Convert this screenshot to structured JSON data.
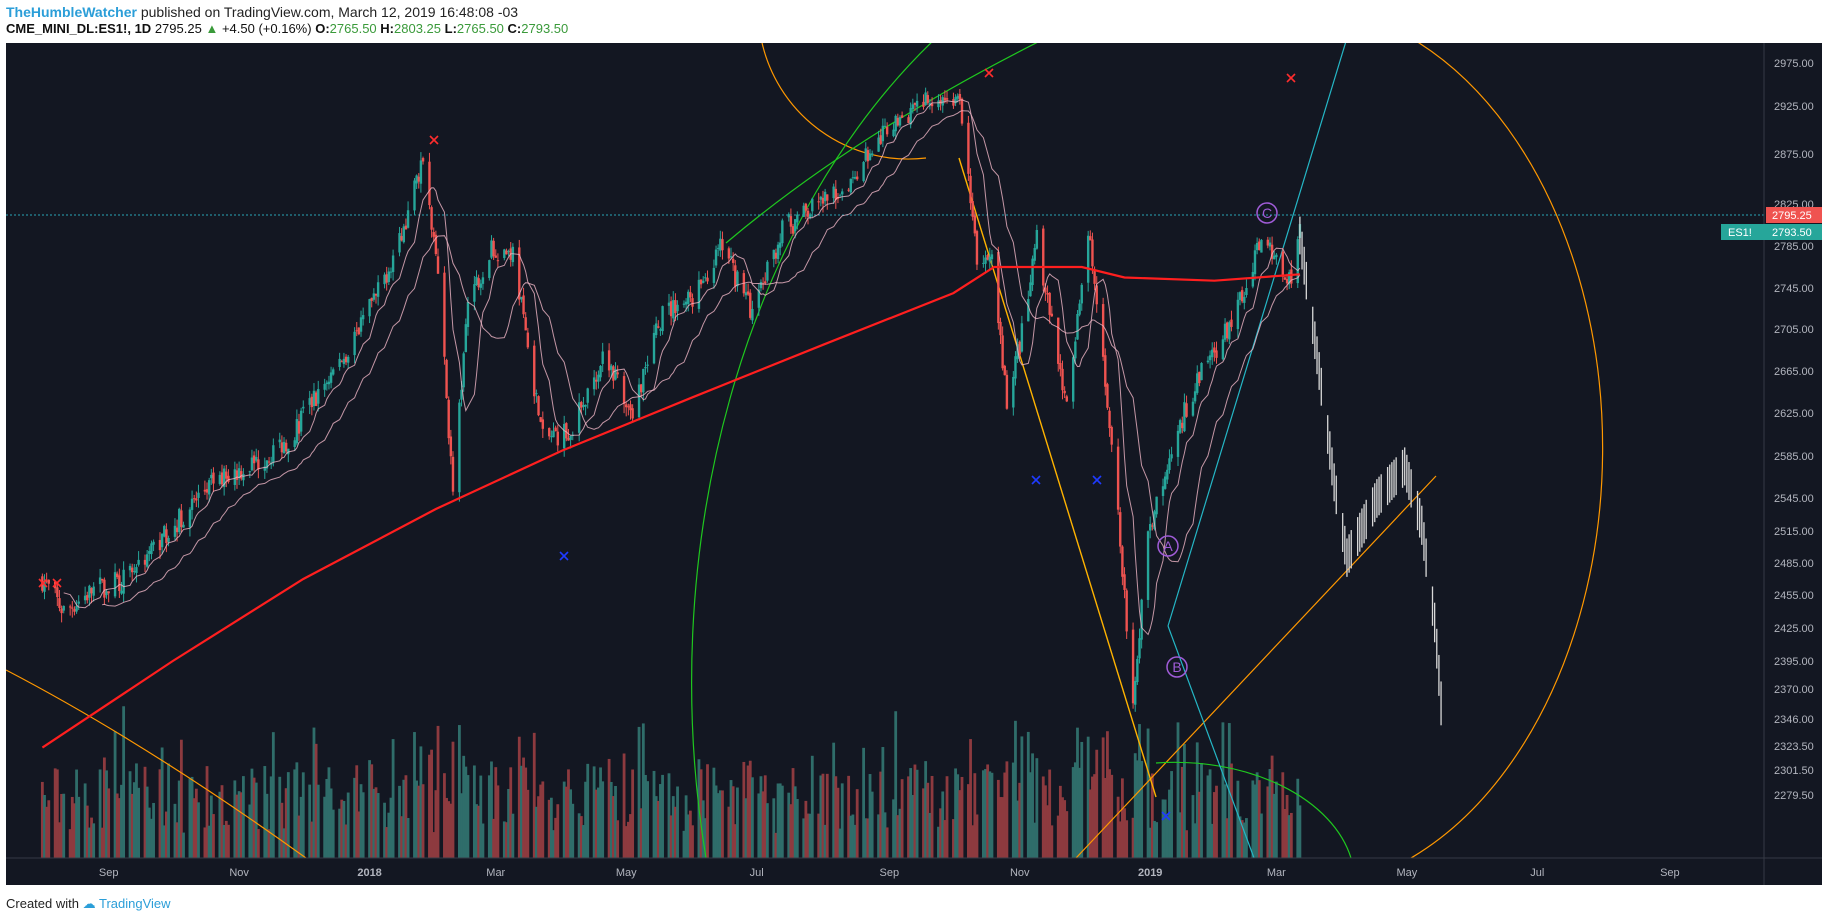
{
  "header": {
    "author": "TheHumbleWatcher",
    "published_text": "published on TradingView.com, March 12, 2019 16:48:08 -03"
  },
  "symbol_bar": {
    "symbol": "CME_MINI_DL:ES1!, 1D",
    "last": "2795.25",
    "change": "+4.50 (+0.16%)",
    "o_label": "O:",
    "o": "2765.50",
    "h_label": "H:",
    "h": "2803.25",
    "l_label": "L:",
    "l": "2765.50",
    "c_label": "C:",
    "c": "2793.50"
  },
  "footer": {
    "created_with": "Created with",
    "brand": "TradingView"
  },
  "colors": {
    "background": "#131722",
    "up": "#26a69a",
    "down": "#ef5350",
    "ma": "#ff1f1f",
    "fib_green": "#1fc81f",
    "fib_orange": "#ff9800",
    "trend_cyan": "#25b7c6",
    "gann_yellow": "#ffb300",
    "wave_purple": "#a05cd8",
    "price_badge": "#26a69a",
    "last_badge": "#ef5350"
  },
  "chart_data": {
    "type": "candlestick",
    "title": "",
    "x_tick_labels": [
      "Sep",
      "Nov",
      "2018",
      "Mar",
      "May",
      "Jul",
      "Sep",
      "Nov",
      "2019",
      "Mar",
      "May",
      "Jul",
      "Sep"
    ],
    "y_tick_labels": [
      "2975.00",
      "2925.00",
      "2875.00",
      "2825.00",
      "2785.00",
      "2745.00",
      "2705.00",
      "2665.00",
      "2625.00",
      "2585.00",
      "2545.00",
      "2515.00",
      "2485.00",
      "2455.00",
      "2425.00",
      "2395.00",
      "2370.00",
      "2346.00",
      "2323.50",
      "2301.50",
      "2279.50"
    ],
    "y_ticks": [
      2975,
      2925,
      2875,
      2825,
      2785,
      2745,
      2705,
      2665,
      2625,
      2585,
      2545,
      2515,
      2485,
      2455,
      2425,
      2395,
      2370,
      2346,
      2323.5,
      2301.5,
      2279.5
    ],
    "ylim": [
      2279.5,
      2990
    ],
    "last_price_label": "2795.25",
    "symbol_badge": "ES1!",
    "symbol_badge_price": "2793.50",
    "wave_labels": [
      "A",
      "B",
      "C"
    ],
    "price_path": [
      [
        "2017-08-01",
        2470
      ],
      [
        "2017-08-11",
        2440
      ],
      [
        "2017-08-25",
        2460
      ],
      [
        "2017-09-08",
        2470
      ],
      [
        "2017-09-29",
        2515
      ],
      [
        "2017-10-20",
        2560
      ],
      [
        "2017-11-10",
        2580
      ],
      [
        "2017-11-24",
        2600
      ],
      [
        "2017-12-08",
        2645
      ],
      [
        "2017-12-22",
        2685
      ],
      [
        "2018-01-05",
        2740
      ],
      [
        "2018-01-19",
        2810
      ],
      [
        "2018-01-26",
        2875
      ],
      [
        "2018-02-02",
        2760
      ],
      [
        "2018-02-09",
        2550
      ],
      [
        "2018-02-16",
        2730
      ],
      [
        "2018-02-26",
        2780
      ],
      [
        "2018-03-09",
        2780
      ],
      [
        "2018-03-23",
        2600
      ],
      [
        "2018-04-06",
        2610
      ],
      [
        "2018-04-20",
        2680
      ],
      [
        "2018-05-04",
        2630
      ],
      [
        "2018-05-18",
        2720
      ],
      [
        "2018-06-01",
        2735
      ],
      [
        "2018-06-15",
        2785
      ],
      [
        "2018-06-29",
        2720
      ],
      [
        "2018-07-13",
        2800
      ],
      [
        "2018-07-27",
        2820
      ],
      [
        "2018-08-10",
        2840
      ],
      [
        "2018-08-31",
        2900
      ],
      [
        "2018-09-21",
        2935
      ],
      [
        "2018-10-04",
        2930
      ],
      [
        "2018-10-12",
        2770
      ],
      [
        "2018-10-19",
        2770
      ],
      [
        "2018-10-26",
        2640
      ],
      [
        "2018-11-02",
        2700
      ],
      [
        "2018-11-09",
        2790
      ],
      [
        "2018-11-23",
        2630
      ],
      [
        "2018-12-03",
        2800
      ],
      [
        "2018-12-14",
        2600
      ],
      [
        "2018-12-24",
        2350
      ],
      [
        "2018-12-31",
        2510
      ],
      [
        "2019-01-11",
        2595
      ],
      [
        "2019-01-25",
        2665
      ],
      [
        "2019-02-08",
        2710
      ],
      [
        "2019-02-22",
        2795
      ],
      [
        "2019-03-08",
        2750
      ],
      [
        "2019-03-12",
        2795
      ]
    ],
    "projection_path": [
      [
        "2019-03-12",
        2795
      ],
      [
        "2019-03-20",
        2680
      ],
      [
        "2019-03-28",
        2560
      ],
      [
        "2019-04-03",
        2490
      ],
      [
        "2019-04-17",
        2545
      ],
      [
        "2019-04-30",
        2575
      ],
      [
        "2019-05-08",
        2520
      ],
      [
        "2019-05-14",
        2430
      ],
      [
        "2019-05-18",
        2335
      ]
    ],
    "moving_average_200": [
      [
        "2017-08-01",
        2322
      ],
      [
        "2017-10-01",
        2395
      ],
      [
        "2017-12-01",
        2470
      ],
      [
        "2018-02-01",
        2535
      ],
      [
        "2018-04-01",
        2590
      ],
      [
        "2018-06-01",
        2640
      ],
      [
        "2018-08-01",
        2690
      ],
      [
        "2018-10-01",
        2740
      ],
      [
        "2018-10-20",
        2765
      ],
      [
        "2018-11-30",
        2765
      ],
      [
        "2018-12-20",
        2755
      ],
      [
        "2019-01-31",
        2752
      ],
      [
        "2019-03-12",
        2758
      ]
    ],
    "volume_series": "per-bar trading volume shown as red/green histogram at bottom of pane"
  }
}
